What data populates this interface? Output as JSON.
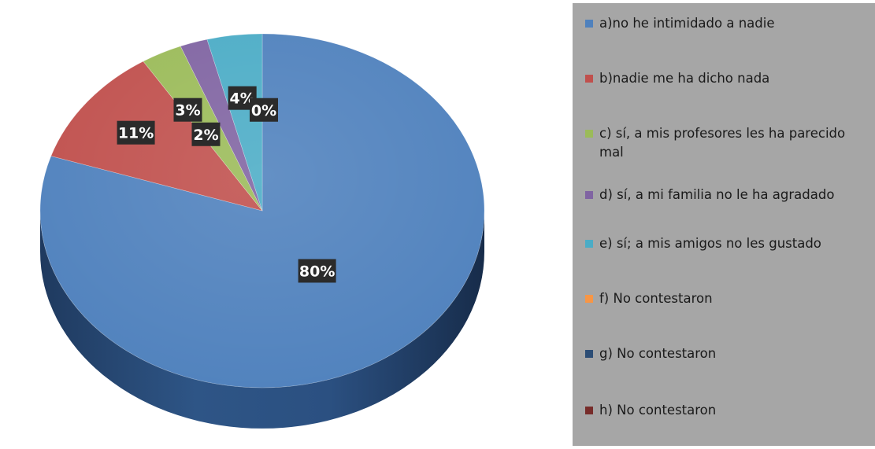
{
  "chart_data": {
    "type": "pie",
    "slices": [
      {
        "label": "a)no he intimidado a nadie",
        "value": 80,
        "display": "80%",
        "color": "#4f81bd"
      },
      {
        "label": "b)nadie me ha dicho nada",
        "value": 11,
        "display": "11%",
        "color": "#c0504d"
      },
      {
        "label": "c) sí, a mis profesores les ha parecido mal",
        "value": 3,
        "display": "3%",
        "color": "#9bbb59"
      },
      {
        "label": "d) sí, a mi familia no le ha agradado",
        "value": 2,
        "display": "2%",
        "color": "#8064a2"
      },
      {
        "label": "e) sí; a mis amigos no les gustado",
        "value": 4,
        "display": "4%",
        "color": "#4bacc6"
      },
      {
        "label": "f) No contestaron",
        "value": 0,
        "display": "0%",
        "color": "#f79646"
      },
      {
        "label": "g) No contestaron",
        "value": 0,
        "display": "",
        "color": "#2c4d75"
      },
      {
        "label": "h) No contestaron",
        "value": 0,
        "display": "",
        "color": "#772c2a"
      }
    ],
    "legend_position": "right",
    "style": "3d-pie"
  }
}
